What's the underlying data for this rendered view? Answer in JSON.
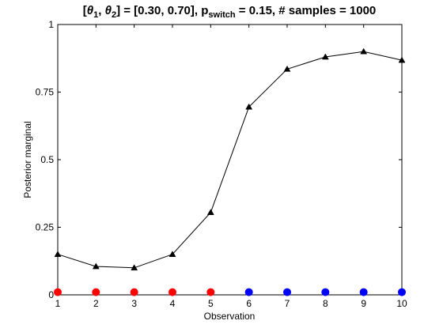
{
  "chart_data": {
    "type": "line",
    "title": {
      "prefix": "[",
      "theta1": "θ",
      "sub1": "1",
      "comma": ", ",
      "theta2": "θ",
      "sub2": "2",
      "middle": "] = [0.30, 0.70], p",
      "sub3": "switch",
      "suffix": " = 0.15, # samples = 1000"
    },
    "xlabel": "Observation",
    "ylabel": "Posterior marginal",
    "xlim": [
      1,
      10
    ],
    "ylim": [
      0,
      1
    ],
    "x_ticks": [
      1,
      2,
      3,
      4,
      5,
      6,
      7,
      8,
      9,
      10
    ],
    "x_tick_labels": [
      "1",
      "2",
      "3",
      "4",
      "5",
      "6",
      "7",
      "8",
      "9",
      "10"
    ],
    "y_ticks": [
      0,
      0.25,
      0.5,
      0.75,
      1
    ],
    "y_tick_labels": [
      "0",
      "0.25",
      "0.5",
      "0.75",
      "1"
    ],
    "grid": false,
    "series": [
      {
        "marker": "triangle",
        "color": "#000000",
        "x": [
          1,
          2,
          3,
          4,
          5,
          6,
          7,
          8,
          9,
          10
        ],
        "values": [
          0.15,
          0.105,
          0.1,
          0.15,
          0.305,
          0.695,
          0.835,
          0.88,
          0.9,
          0.868
        ]
      }
    ],
    "observations": {
      "marker": "circle",
      "y": 0.01,
      "x": [
        1,
        2,
        3,
        4,
        5,
        6,
        7,
        8,
        9,
        10
      ],
      "colors": [
        "#ff0000",
        "#ff0000",
        "#ff0000",
        "#ff0000",
        "#ff0000",
        "#0000ff",
        "#0000ff",
        "#0000ff",
        "#0000ff",
        "#0000ff"
      ]
    }
  }
}
